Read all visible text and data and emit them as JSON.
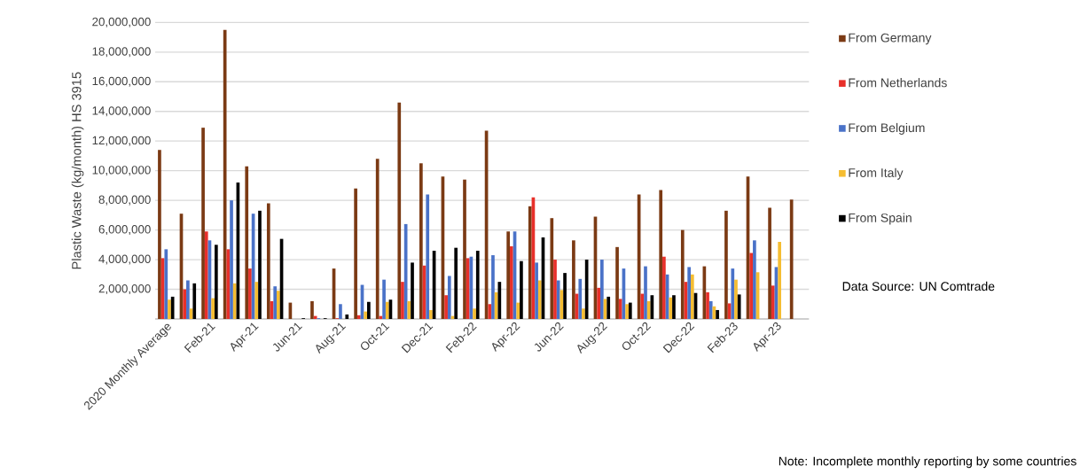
{
  "chart_data": {
    "type": "bar",
    "ylabel": "Plastic Waste (kg/month) HS 3915",
    "categories": [
      "2020 Monthly Average",
      null,
      "Feb-21",
      null,
      "Apr-21",
      null,
      "Jun-21",
      null,
      "Aug-21",
      null,
      "Oct-21",
      null,
      "Dec-21",
      null,
      "Feb-22",
      null,
      "Apr-22",
      null,
      "Jun-22",
      null,
      "Aug-22",
      null,
      "Oct-22",
      null,
      "Dec-22",
      null,
      "Feb-23",
      null,
      "Apr-23",
      null
    ],
    "series": [
      {
        "name": "From Germany",
        "color": "#7b3a14",
        "values": [
          11400000,
          7100000,
          12900000,
          19500000,
          10300000,
          7800000,
          1100000,
          1200000,
          3400000,
          8800000,
          10800000,
          14600000,
          10500000,
          9600000,
          9400000,
          12700000,
          5900000,
          7600000,
          6800000,
          5300000,
          6900000,
          4850000,
          8400000,
          8700000,
          6000000,
          3550000,
          7300000,
          9600000,
          7500000,
          8050000
        ]
      },
      {
        "name": "From Netherlands",
        "color": "#e8302a",
        "values": [
          4100000,
          2000000,
          5900000,
          4700000,
          3400000,
          1200000,
          null,
          200000,
          50000,
          250000,
          200000,
          2500000,
          3600000,
          1600000,
          4100000,
          1000000,
          4900000,
          8200000,
          4000000,
          1700000,
          2100000,
          1350000,
          1700000,
          4200000,
          2500000,
          1800000,
          1050000,
          4450000,
          2250000,
          null
        ]
      },
      {
        "name": "From Belgium",
        "color": "#4a72c8",
        "values": [
          4700000,
          2600000,
          5300000,
          8000000,
          7100000,
          2200000,
          null,
          50000,
          1000000,
          2300000,
          2650000,
          6400000,
          8400000,
          2900000,
          4200000,
          4300000,
          5900000,
          3800000,
          2600000,
          2700000,
          4000000,
          3400000,
          3550000,
          3000000,
          3500000,
          1200000,
          3400000,
          5300000,
          3500000,
          null
        ]
      },
      {
        "name": "From Italy",
        "color": "#f5bd32",
        "values": [
          1300000,
          700000,
          1400000,
          2400000,
          2500000,
          1900000,
          null,
          null,
          null,
          500000,
          1150000,
          1200000,
          600000,
          200000,
          700000,
          1800000,
          1100000,
          2600000,
          1950000,
          700000,
          1350000,
          1000000,
          1200000,
          1450000,
          3000000,
          850000,
          2650000,
          3150000,
          5200000,
          null
        ]
      },
      {
        "name": "From Spain",
        "color": "#000000",
        "values": [
          1500000,
          2400000,
          5000000,
          9200000,
          7300000,
          5400000,
          50000,
          50000,
          300000,
          1150000,
          1300000,
          3800000,
          4600000,
          4800000,
          4600000,
          2500000,
          3900000,
          5500000,
          3100000,
          4000000,
          1500000,
          1100000,
          1600000,
          1600000,
          1750000,
          600000,
          1650000,
          null,
          null,
          null
        ]
      }
    ],
    "ylim": [
      0,
      20000000
    ],
    "yticks": [
      {
        "value": 2000000,
        "label": "2,000,000"
      },
      {
        "value": 4000000,
        "label": "4,000,000"
      },
      {
        "value": 6000000,
        "label": "6,000,000"
      },
      {
        "value": 8000000,
        "label": "8,000,000"
      },
      {
        "value": 10000000,
        "label": "10,000,000"
      },
      {
        "value": 12000000,
        "label": "12,000,000"
      },
      {
        "value": 14000000,
        "label": "14,000,000"
      },
      {
        "value": 16000000,
        "label": "16,000,000"
      },
      {
        "value": 18000000,
        "label": "18,000,000"
      },
      {
        "value": 20000000,
        "label": "20,000,000"
      }
    ],
    "grid": "y",
    "legend": "right",
    "annotations": [
      "Data Source: UN Comtrade",
      "Note: Incomplete monthly reporting by some countries"
    ]
  }
}
